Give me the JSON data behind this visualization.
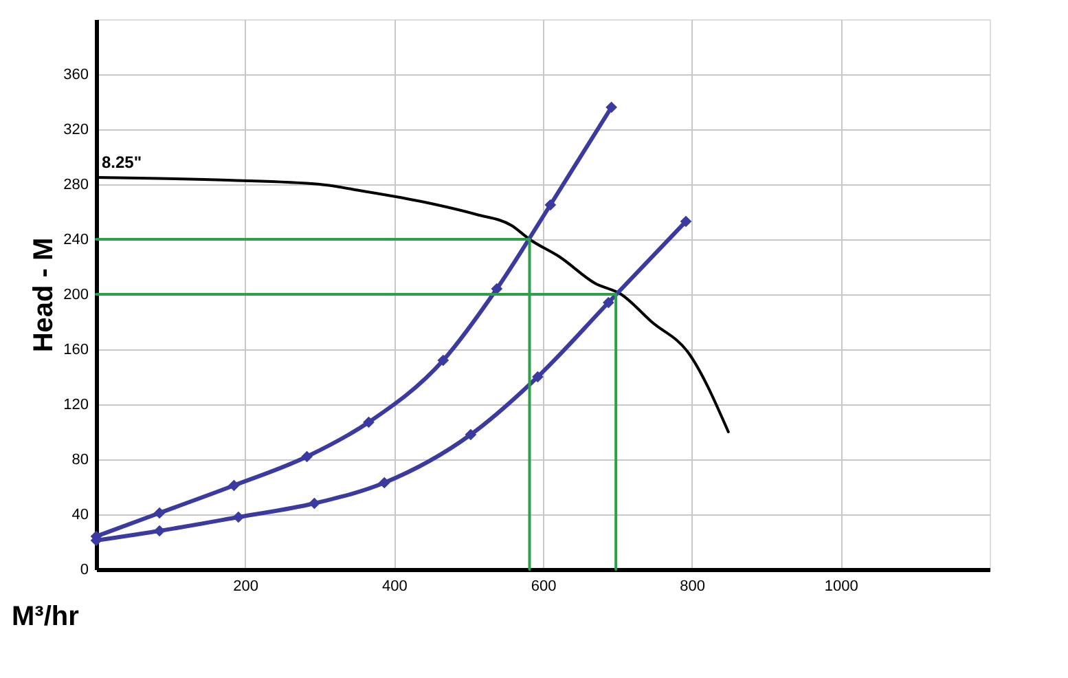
{
  "chart_data": {
    "type": "line",
    "xlabel": "M³/hr",
    "ylabel": "Head - M",
    "xlim": [
      0,
      1200
    ],
    "ylim": [
      0,
      400
    ],
    "xticks": [
      200,
      400,
      600,
      800,
      1000
    ],
    "yticks": [
      0,
      40,
      80,
      120,
      160,
      200,
      240,
      280,
      320,
      360
    ],
    "grid": true,
    "series": [
      {
        "name": "8.25\"",
        "color": "#000000",
        "marker": "none",
        "x": [
          0,
          177,
          300,
          359,
          441,
          511,
          558,
          582,
          623,
          670,
          705,
          746,
          796,
          849
        ],
        "values": [
          285,
          283,
          280,
          275,
          267,
          258,
          250,
          240,
          227,
          208,
          200,
          180,
          157,
          100
        ]
      },
      {
        "color": "#3a3aa0",
        "marker": "diamond",
        "x": [
          0,
          85,
          185,
          283,
          366,
          466,
          538,
          610,
          692
        ],
        "values": [
          24,
          41,
          61,
          82,
          107,
          152,
          204,
          265,
          336
        ]
      },
      {
        "color": "#3a3aa0",
        "marker": "diamond",
        "x": [
          0,
          85,
          191,
          293,
          387,
          503,
          593,
          688,
          792
        ],
        "values": [
          21,
          28,
          38,
          48,
          63,
          98,
          140,
          194,
          253
        ]
      },
      {
        "color": "#2ca048",
        "marker": "none",
        "x": [
          0,
          582,
          582
        ],
        "values": [
          240,
          240,
          0
        ]
      },
      {
        "color": "#2ca048",
        "marker": "none",
        "x": [
          0,
          698,
          698
        ],
        "values": [
          200,
          200,
          0
        ]
      }
    ]
  }
}
